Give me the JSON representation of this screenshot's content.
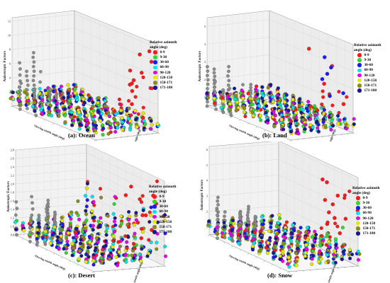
{
  "legend": {
    "title_line1": "Relative azimuth",
    "title_line2": "angle (deg)",
    "items": [
      {
        "label": "0-9",
        "color": "#ff1a1a"
      },
      {
        "label": "9-30",
        "color": "#33d633"
      },
      {
        "label": "30-60",
        "color": "#1a1aff"
      },
      {
        "label": "60-90",
        "color": "#00e5e5"
      },
      {
        "label": "90-120",
        "color": "#e600e6"
      },
      {
        "label": "120-150",
        "color": "#e6e600"
      },
      {
        "label": "150-171",
        "color": "#8c8c1a"
      },
      {
        "label": "171-180",
        "color": "#1a1a8c"
      }
    ]
  },
  "axis_labels": {
    "z": "Anisotropic Factors",
    "x": "Viewing zenith angle (deg)",
    "y": "Solar zenith angle (deg)"
  },
  "chart_data": [
    {
      "type": "scatter",
      "panel": "ocean",
      "caption": "(a): Ocean",
      "zlabel": "Anisotropic Factors",
      "xlabel": "Viewing zenith angle (deg)",
      "ylabel": "Solar zenith angle (deg)",
      "zticks": [
        "2",
        "4",
        "6",
        "8",
        "10",
        "12"
      ],
      "zlim": [
        0,
        12.5
      ],
      "max_value": 12.2
    },
    {
      "type": "scatter",
      "panel": "land",
      "caption": "(b): Land",
      "zlabel": "Anisotropic Factors",
      "xlabel": "Viewing zenith angle (deg)",
      "ylabel": "Solar zenith angle (deg)",
      "zticks": [
        "1",
        "2",
        "3",
        "4",
        "5"
      ],
      "zlim": [
        0.5,
        5.5
      ],
      "max_value": 5.2
    },
    {
      "type": "scatter",
      "panel": "desert",
      "caption": "(c): Desert",
      "zlabel": "Anisotropic Factors",
      "xlabel": "Viewing zenith angle (deg)",
      "ylabel": "Solar zenith angle (deg)",
      "zticks": [
        "0.8",
        "1.0",
        "1.2",
        "1.4",
        "1.6",
        "1.8",
        "2.0",
        "2.2",
        "2.4",
        "2.6",
        "2.8"
      ],
      "zlim": [
        0.8,
        2.8
      ],
      "max_value": 2.6
    },
    {
      "type": "scatter",
      "panel": "snow",
      "caption": "(d): Snow",
      "zlabel": "Anisotropic Factors",
      "xlabel": "Viewing zenith angle (deg)",
      "ylabel": "Solar zenith angle (deg)",
      "zticks": [
        "1",
        "2",
        "3",
        "4",
        "5",
        "6"
      ],
      "zlim": [
        0.5,
        6.2
      ],
      "max_value": 6.0
    }
  ]
}
